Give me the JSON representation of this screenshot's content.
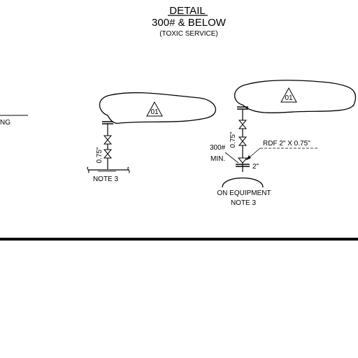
{
  "header": {
    "title": "DETAIL",
    "subtitle": "300# & BELOW",
    "service": "(TOXIC SERVICE)"
  },
  "left_fragment": {
    "label": "NG"
  },
  "detail_a": {
    "callout": "01",
    "dimension": "0.75\"",
    "note": "NOTE 3"
  },
  "detail_b": {
    "callout": "01",
    "dimension": "0.75\"",
    "rating": "300#",
    "rating_min": "MIN.",
    "rdf": "RDF 2\" X 0.75\"",
    "pipe_size": "2\"",
    "equipment": "ON EQUIPMENT",
    "note": "NOTE 3"
  }
}
